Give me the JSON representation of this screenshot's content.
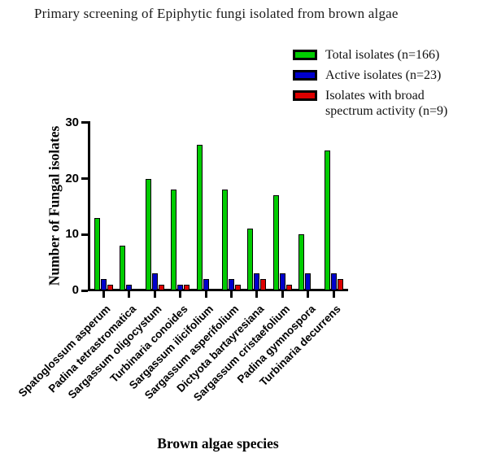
{
  "title": "Primary screening of Epiphytic fungi isolated from brown algae",
  "legend": {
    "items": [
      {
        "label": "Total isolates (n=166)",
        "color": "#00CC00"
      },
      {
        "label": "Active isolates (n=23)",
        "color": "#0000CC"
      },
      {
        "label": "Isolates with broad spectrum activity (n=9)",
        "color": "#DD0000"
      }
    ]
  },
  "axes": {
    "ylabel": "Number of Fungal isolates",
    "xlabel": "Brown algae species"
  },
  "chart_data": {
    "type": "bar",
    "title": "Primary screening of Epiphytic fungi isolated from brown algae",
    "categories": [
      "Spatoglossum asperum",
      "Padina tetrastromatica",
      "Sargassum oligocystum",
      "Turbinaria conoides",
      "Sargassum ilicifolium",
      "Sargassum asperifolium",
      "Dictyota bartayresiana",
      "Sargassum cristaefolium",
      "Padina gymnospora",
      "Turbinaria decurrens"
    ],
    "series": [
      {
        "name": "Total isolates (n=166)",
        "color": "#00CC00",
        "values": [
          13,
          8,
          20,
          18,
          26,
          18,
          11,
          17,
          10,
          25
        ]
      },
      {
        "name": "Active isolates (n=23)",
        "color": "#0000CC",
        "values": [
          2,
          1,
          3,
          1,
          2,
          2,
          3,
          3,
          3,
          3
        ]
      },
      {
        "name": "Isolates with broad spectrum activity (n=9)",
        "color": "#DD0000",
        "values": [
          1,
          0,
          1,
          1,
          0,
          1,
          2,
          1,
          0,
          2
        ]
      }
    ],
    "xlabel": "Brown algae species",
    "ylabel": "Number of Fungal isolates",
    "ylim": [
      0,
      30
    ],
    "yticks": [
      0,
      10,
      20,
      30
    ],
    "grid": false,
    "legend_position": "top-right",
    "bar_border_color": "#000000"
  }
}
